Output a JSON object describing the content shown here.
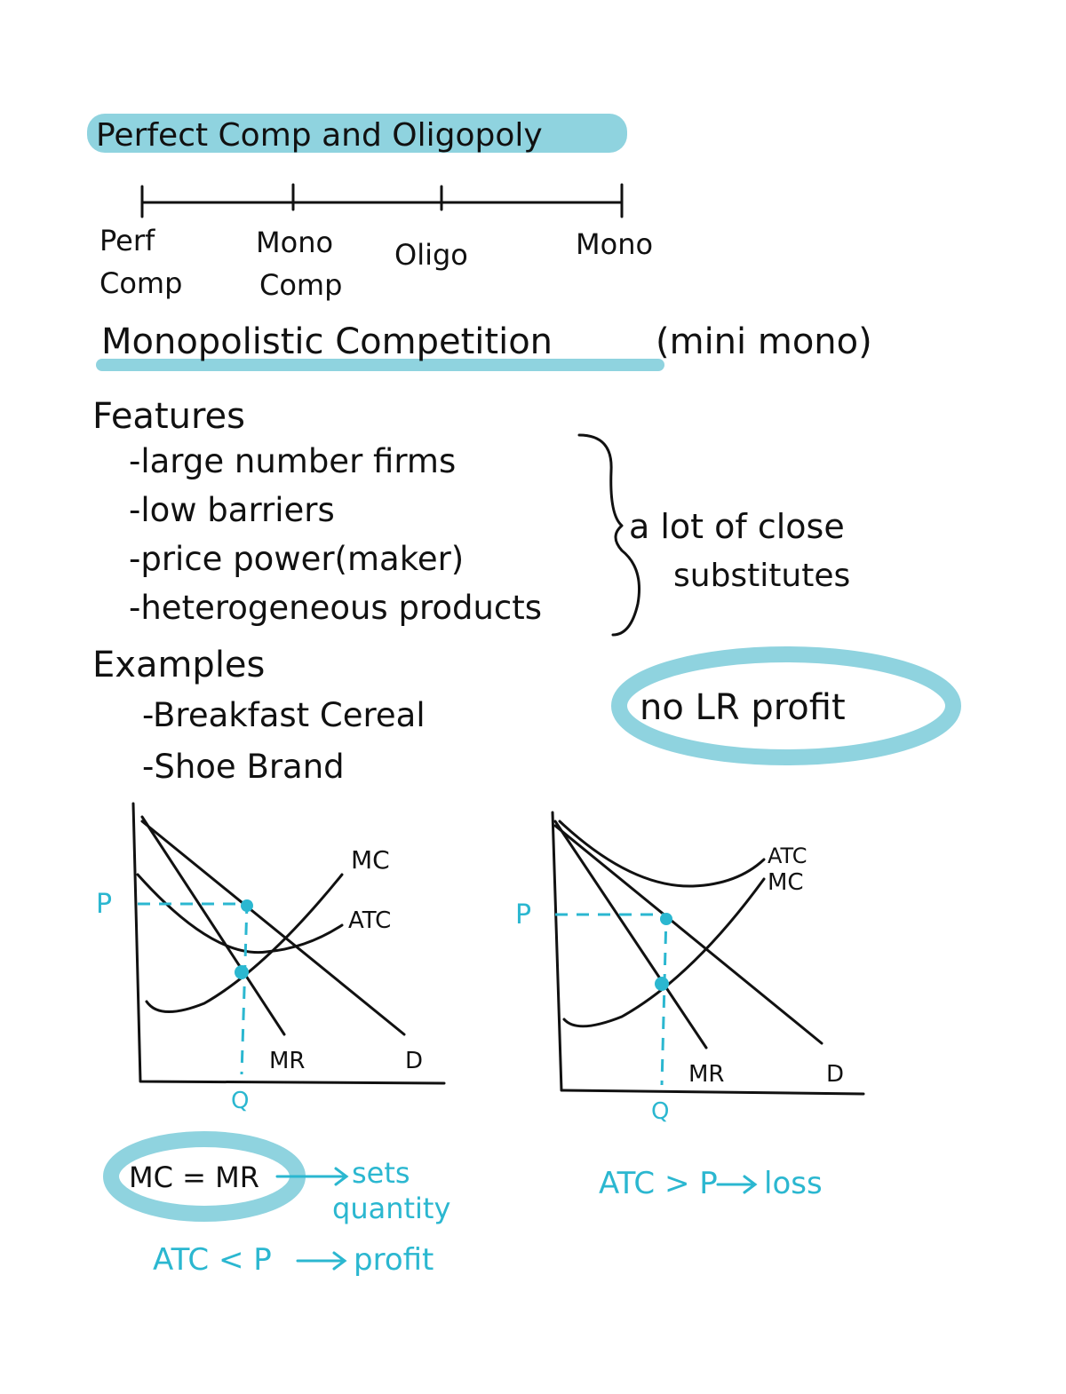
{
  "title": "Perfect Comp and Oligopoly",
  "spectrum": [
    [
      "Perf",
      "Comp"
    ],
    [
      "Mono",
      "Comp"
    ],
    [
      "Oligo"
    ],
    [
      "Mono"
    ]
  ],
  "section": {
    "heading": "Monopolistic Competition",
    "note": "(mini mono)"
  },
  "features": {
    "heading": "Features",
    "items": [
      "-large number firms",
      "-low barriers",
      "-price power(maker)",
      "-heterogeneous products"
    ],
    "brace_note": [
      "a lot of close",
      "substitutes"
    ]
  },
  "examples": {
    "heading": "Examples",
    "items": [
      "-Breakfast Cereal",
      "-Shoe Brand"
    ]
  },
  "callout": "no LR profit",
  "graphs": [
    {
      "labels": {
        "mc": "MC",
        "atc": "ATC",
        "p": "P",
        "q": "Q",
        "mr": "MR",
        "d": "D"
      }
    },
    {
      "labels": {
        "mc": "MC",
        "atc": "ATC",
        "p": "P",
        "q": "Q",
        "mr": "MR",
        "d": "D"
      }
    }
  ],
  "notes_left": {
    "rule": "MC = MR",
    "result": [
      "sets",
      "quantity"
    ],
    "condition": "ATC < P",
    "outcome": "profit"
  },
  "notes_right": {
    "condition": "ATC > P",
    "outcome": "loss"
  }
}
